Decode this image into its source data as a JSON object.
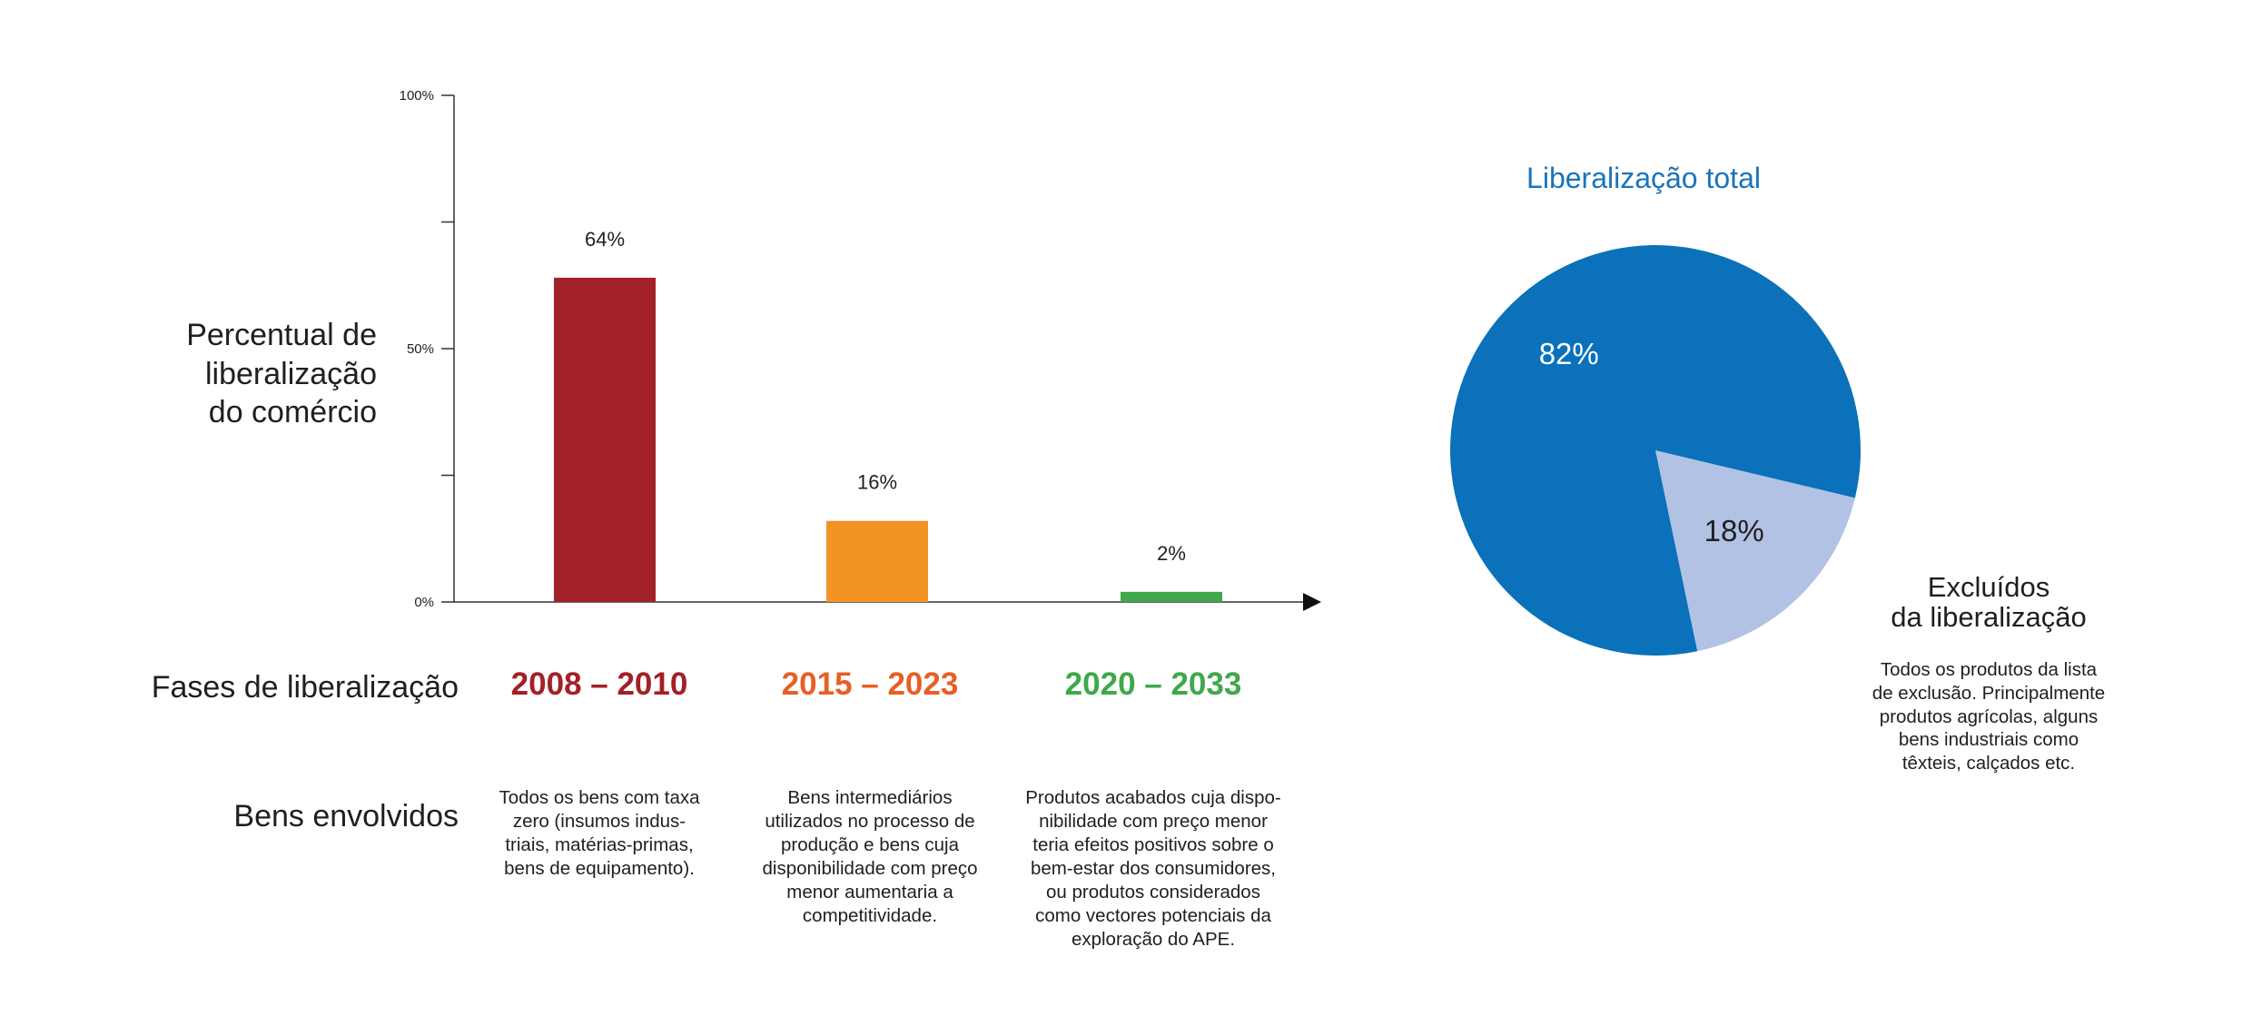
{
  "chart_data": [
    {
      "type": "bar",
      "ylabel": "Percentual de liberalização do comércio",
      "ylim": [
        0,
        100
      ],
      "yticks": [
        {
          "value": 0,
          "label": "0%"
        },
        {
          "value": 25,
          "label": ""
        },
        {
          "value": 50,
          "label": "50%"
        },
        {
          "value": 75,
          "label": ""
        },
        {
          "value": 100,
          "label": "100%"
        }
      ],
      "categories": [
        "2008 – 2010",
        "2015 – 2023",
        "2020 – 2033"
      ],
      "values": [
        64,
        16,
        2
      ],
      "value_labels": [
        "64%",
        "16%",
        "2%"
      ],
      "colors": [
        "#a12127",
        "#f39325",
        "#3fa84a"
      ]
    },
    {
      "type": "pie",
      "title": "Liberalização total",
      "slices": [
        {
          "label": "Liberalização total",
          "value": 82,
          "value_label": "82%",
          "color": "#0a71ba"
        },
        {
          "label": "Excluídos da liberalização",
          "value": 18,
          "value_label": "18%",
          "color": "#b1c2e5"
        }
      ]
    }
  ],
  "labels": {
    "y_title": "Percentual de\nliberalização\ndo comércio",
    "phases_row": "Fases de liberalização",
    "goods_row": "Bens envolvidos"
  },
  "phases": [
    {
      "period": "2008 – 2010",
      "color": "#a12127",
      "description": "Todos os bens com taxa\nzero (insumos indus-\ntriais, matérias-primas,\nbens de equipamento)."
    },
    {
      "period": "2015 – 2023",
      "color": "#e85f26",
      "description": "Bens intermediários\nutilizados no processo de\nprodução e bens cuja\ndisponibilidade com preço\nmenor aumentaria a\ncompetitividade."
    },
    {
      "period": "2020 – 2033",
      "color": "#3fa84a",
      "description": "Produtos acabados cuja dispo-\nnibilidade com preço menor\nteria efeitos positivos sobre o\nbem-estar dos consumidores,\nou produtos considerados\ncomo vectores potenciais da\nexploração do APE."
    }
  ],
  "excluded": {
    "title": "Excluídos\nda liberalização",
    "description": "Todos os produtos da lista\nde exclusão. Principalmente\nprodutos agrícolas, alguns\nbens industriais como\ntêxteis, calçados etc."
  }
}
